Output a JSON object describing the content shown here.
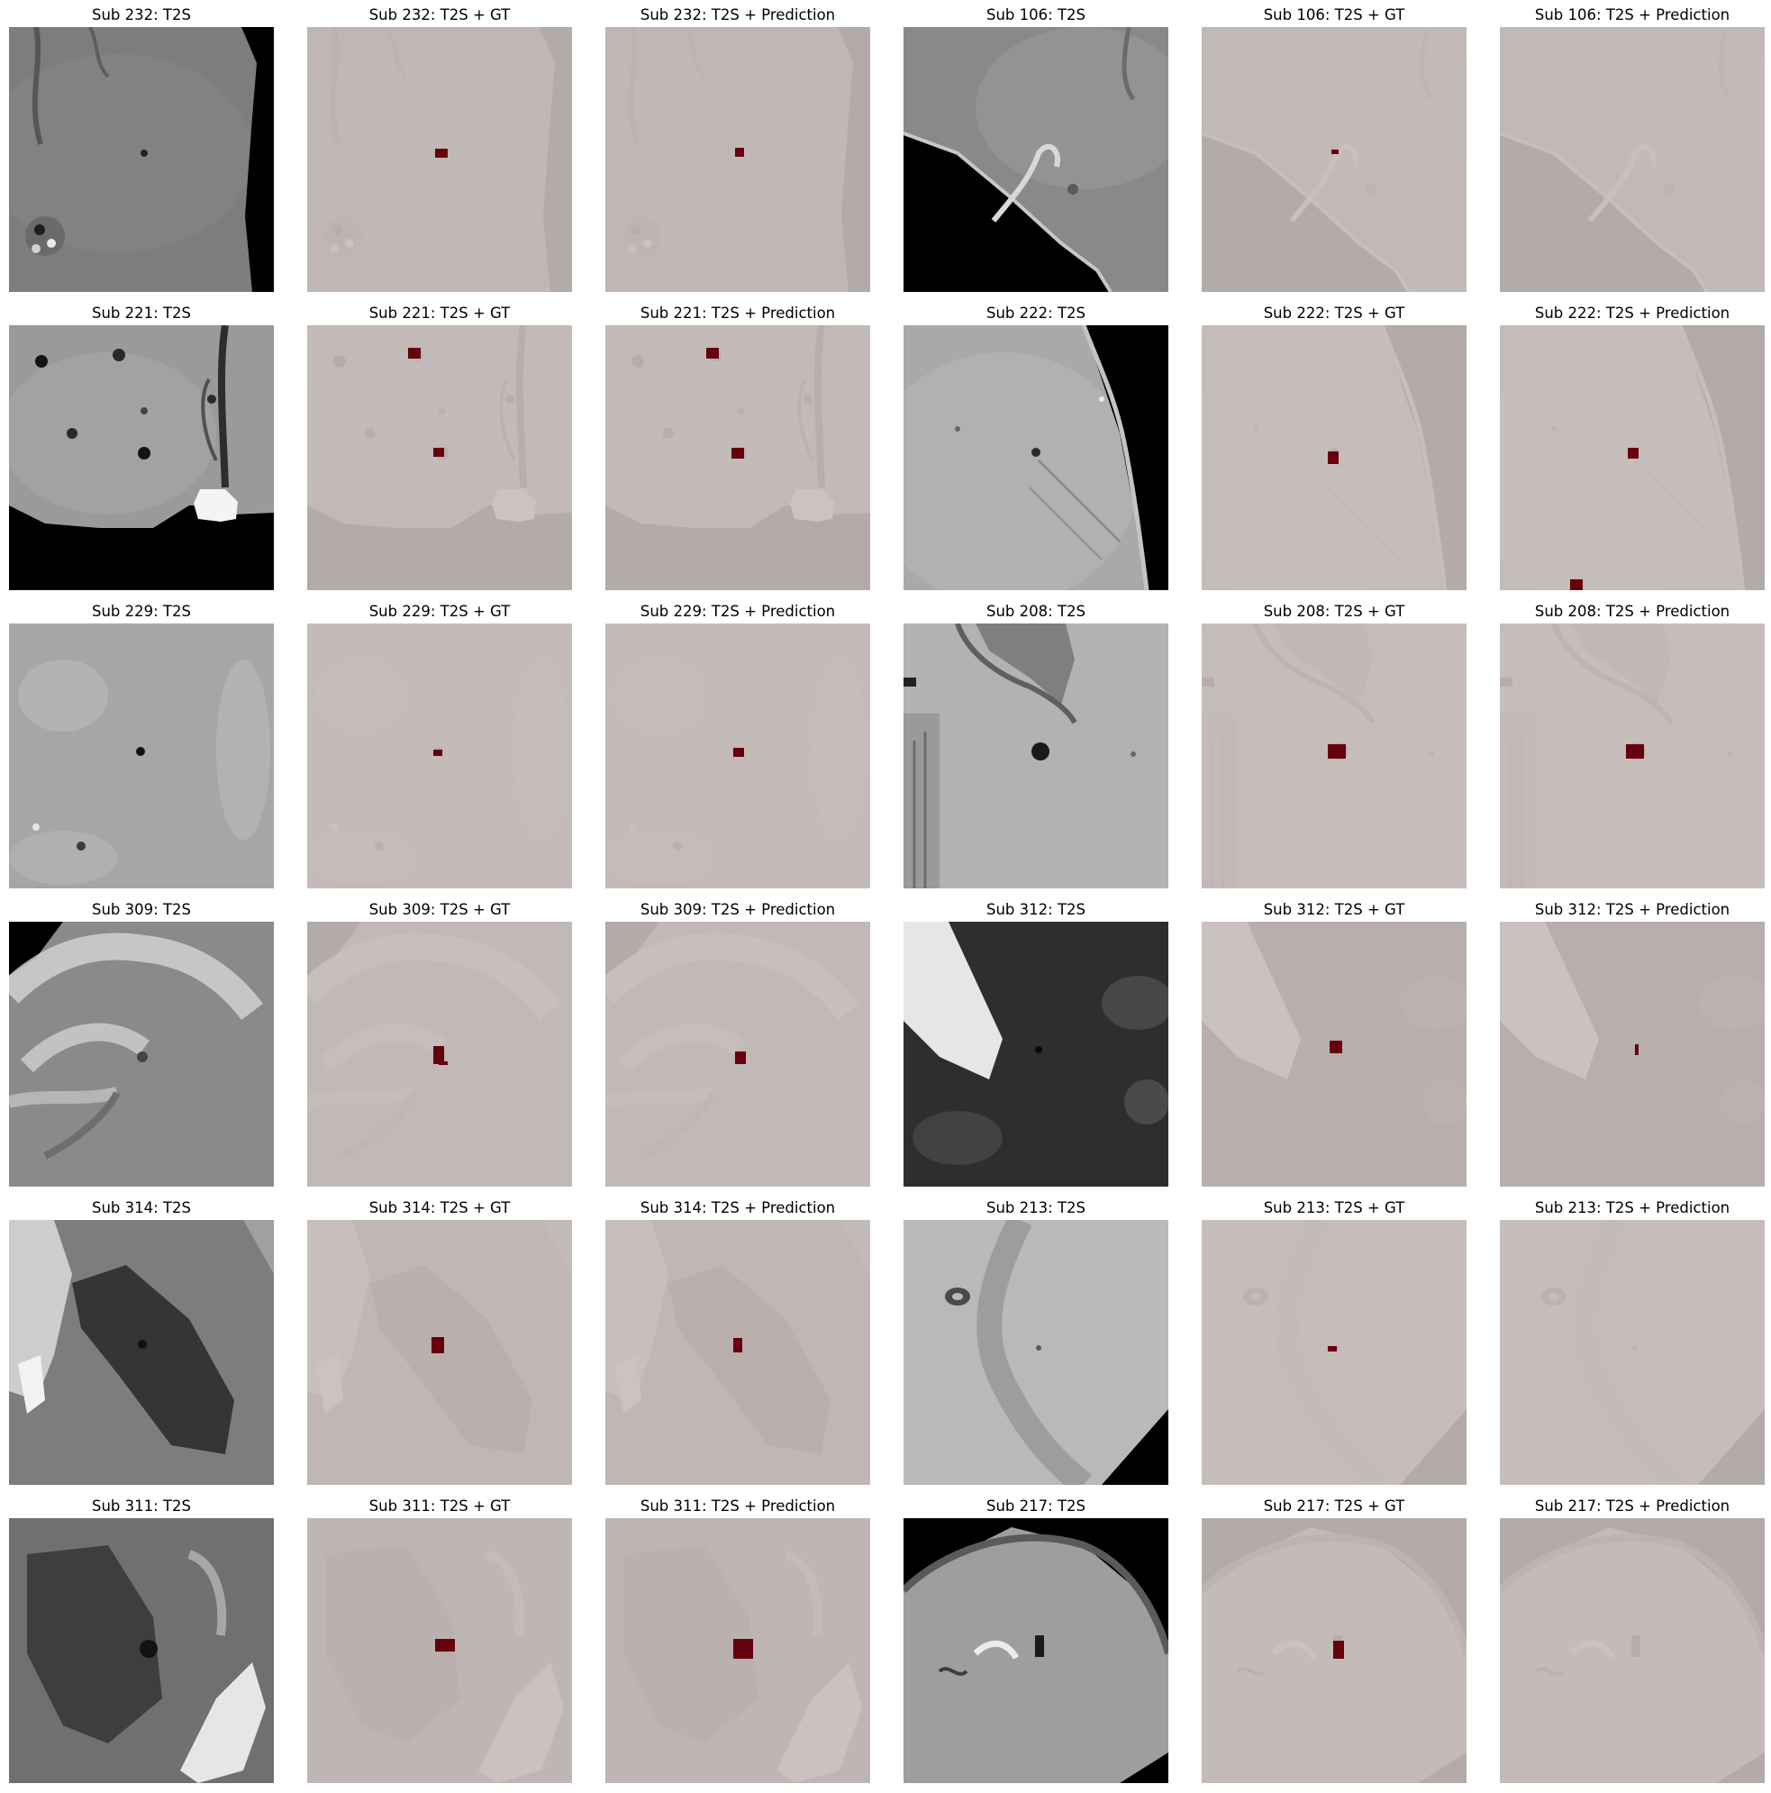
{
  "figure": {
    "colors": {
      "lesion": "#67000d",
      "overlay_base": "#f0e9e7",
      "overlay_background": "#b3aba8",
      "raw_background": "#000000"
    },
    "rows": [
      {
        "subjects": [
          {
            "titles": [
              "Sub 232: T2S",
              "Sub 232: T2S + GT",
              "Sub 232: T2S + Prediction"
            ],
            "scene": "s232",
            "gt": "gt232",
            "pred": "pr232"
          },
          {
            "titles": [
              "Sub 106: T2S",
              "Sub 106: T2S + GT",
              "Sub 106: T2S + Prediction"
            ],
            "scene": "s106",
            "gt": "gt106",
            "pred": null
          }
        ]
      },
      {
        "subjects": [
          {
            "titles": [
              "Sub 221: T2S",
              "Sub 221: T2S + GT",
              "Sub 221: T2S + Prediction"
            ],
            "scene": "s221",
            "gt": "gt221",
            "pred": "pr221"
          },
          {
            "titles": [
              "Sub 222: T2S",
              "Sub 222: T2S + GT",
              "Sub 222: T2S + Prediction"
            ],
            "scene": "s222",
            "gt": "gt222",
            "pred": "pr222"
          }
        ]
      },
      {
        "subjects": [
          {
            "titles": [
              "Sub 229: T2S",
              "Sub 229: T2S + GT",
              "Sub 229: T2S + Prediction"
            ],
            "scene": "s229",
            "gt": "gt229",
            "pred": "pr229"
          },
          {
            "titles": [
              "Sub 208: T2S",
              "Sub 208: T2S + GT",
              "Sub 208: T2S + Prediction"
            ],
            "scene": "s208",
            "gt": "gt208",
            "pred": "pr208"
          }
        ]
      },
      {
        "subjects": [
          {
            "titles": [
              "Sub 309: T2S",
              "Sub 309: T2S + GT",
              "Sub 309: T2S + Prediction"
            ],
            "scene": "s309",
            "gt": "gt309",
            "pred": "pr309"
          },
          {
            "titles": [
              "Sub 312: T2S",
              "Sub 312: T2S + GT",
              "Sub 312: T2S + Prediction"
            ],
            "scene": "s312",
            "gt": "gt312",
            "pred": "pr312"
          }
        ]
      },
      {
        "subjects": [
          {
            "titles": [
              "Sub 314: T2S",
              "Sub 314: T2S + GT",
              "Sub 314: T2S + Prediction"
            ],
            "scene": "s314",
            "gt": "gt314",
            "pred": "pr314"
          },
          {
            "titles": [
              "Sub 213: T2S",
              "Sub 213: T2S + GT",
              "Sub 213: T2S + Prediction"
            ],
            "scene": "s213",
            "gt": "gt213",
            "pred": null
          }
        ]
      },
      {
        "subjects": [
          {
            "titles": [
              "Sub 311: T2S",
              "Sub 311: T2S + GT",
              "Sub 311: T2S + Prediction"
            ],
            "scene": "s311",
            "gt": "gt311",
            "pred": "pr311"
          },
          {
            "titles": [
              "Sub 217: T2S",
              "Sub 217: T2S + GT",
              "Sub 217: T2S + Prediction"
            ],
            "scene": "s217",
            "gt": "gt217",
            "pred": null
          }
        ]
      }
    ]
  }
}
